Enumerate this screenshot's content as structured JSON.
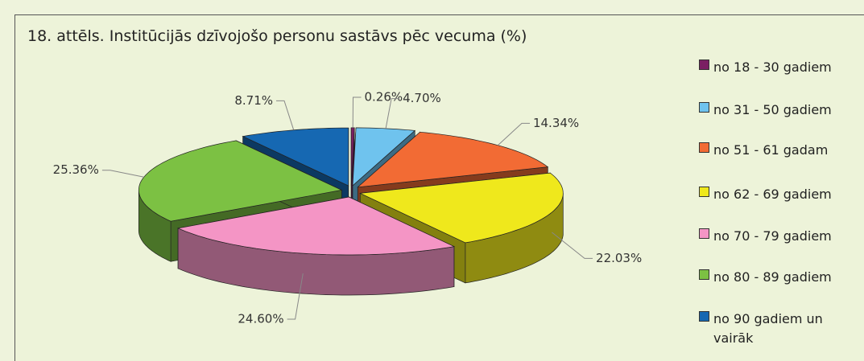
{
  "chart_data": {
    "type": "pie3d",
    "title": "18. attēls. Institūcijās dzīvojošo personu sastāvs pēc vecuma (%)",
    "categories": [
      "no 18 - 30 gadiem",
      "no 31 - 50 gadiem",
      "no 51 - 61 gadam",
      "no 62 - 69 gadiem",
      "no 70 - 79 gadiem",
      "no 80 - 89 gadiem",
      "no 90 gadiem un vairāk"
    ],
    "values": [
      0.26,
      4.7,
      14.34,
      22.03,
      24.6,
      25.36,
      8.71
    ],
    "value_labels": [
      "0.26%",
      "4.70%",
      "14.34%",
      "22.03%",
      "24.60%",
      "25.36%",
      "8.71%"
    ],
    "colors": [
      "#7b1f63",
      "#6fc3ee",
      "#f26b34",
      "#efe81c",
      "#f495c5",
      "#7cc143",
      "#1668b2"
    ],
    "legend": "right"
  }
}
